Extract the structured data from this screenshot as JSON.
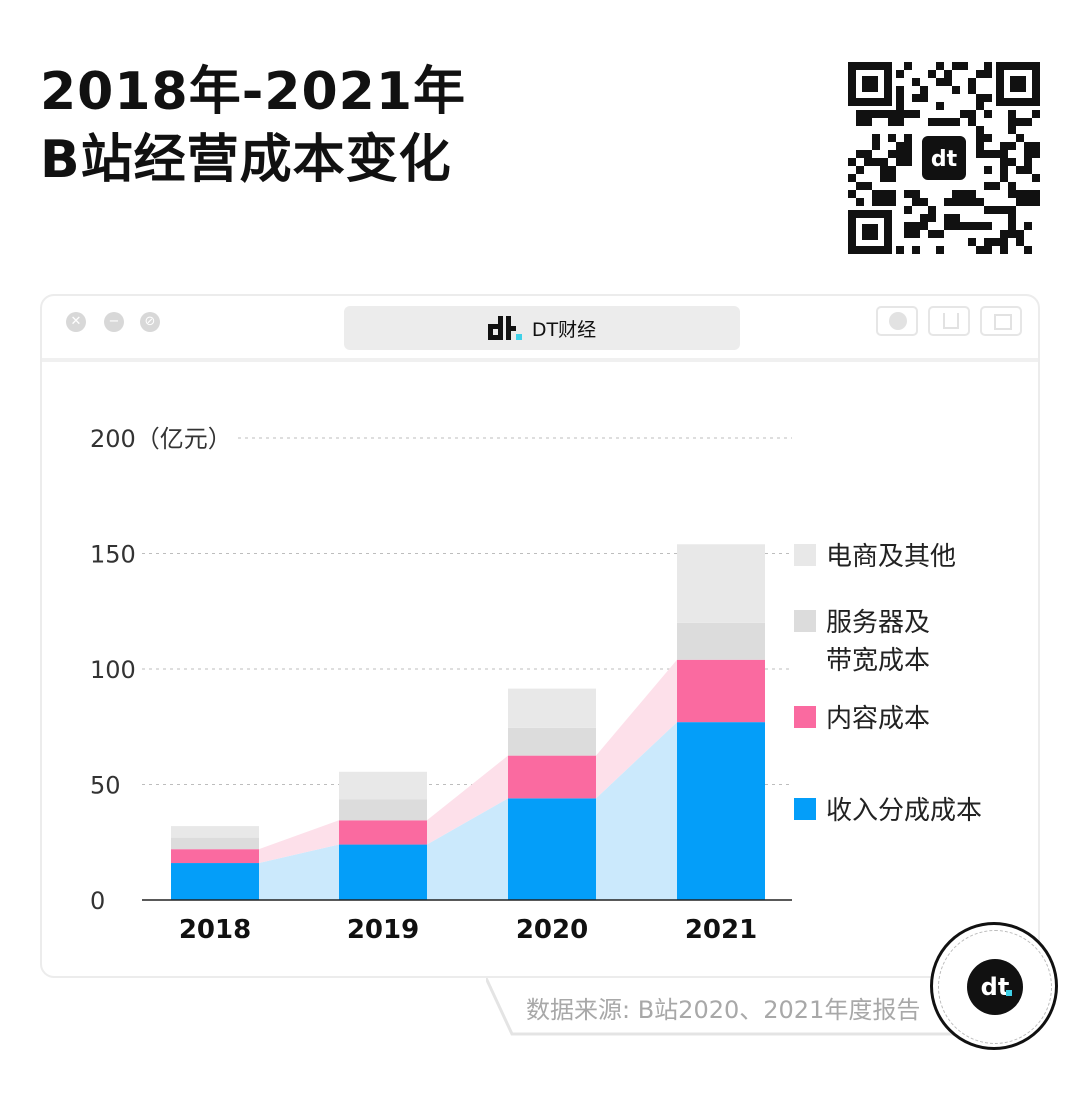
{
  "header": {
    "title_line1": "2018年-2021年",
    "title_line2": "B站经营成本变化"
  },
  "window": {
    "brand_label": "DT财经",
    "controls": [
      "close-icon",
      "minimize-icon",
      "maximize-icon"
    ]
  },
  "chart_data": {
    "type": "bar",
    "stacked": true,
    "categories": [
      "2018",
      "2019",
      "2020",
      "2021"
    ],
    "ylim": [
      0,
      200
    ],
    "yticks": [
      "0",
      "50",
      "100",
      "150",
      "200（亿元）"
    ],
    "grid": true,
    "legend_position": "right",
    "series": [
      {
        "name": "收入分成成本",
        "color": "#049ef9",
        "values": [
          16,
          24,
          44,
          77
        ]
      },
      {
        "name": "内容成本",
        "color": "#fa6aa0",
        "values": [
          6,
          10.5,
          18.5,
          27
        ]
      },
      {
        "name": "服务器及带宽成本",
        "name_lines": [
          "服务器及",
          "带宽成本"
        ],
        "color": "#dcdcdc",
        "values": [
          5,
          9,
          12,
          16
        ]
      },
      {
        "name": "电商及其他",
        "color": "#e8e8e8",
        "values": [
          5,
          12,
          17,
          34
        ]
      }
    ],
    "flow_colors": [
      "#cbe9fc",
      "#fde0ea"
    ]
  },
  "footer": {
    "source": "数据来源: B站2020、2021年度报告"
  },
  "watermark": "dt.财经"
}
